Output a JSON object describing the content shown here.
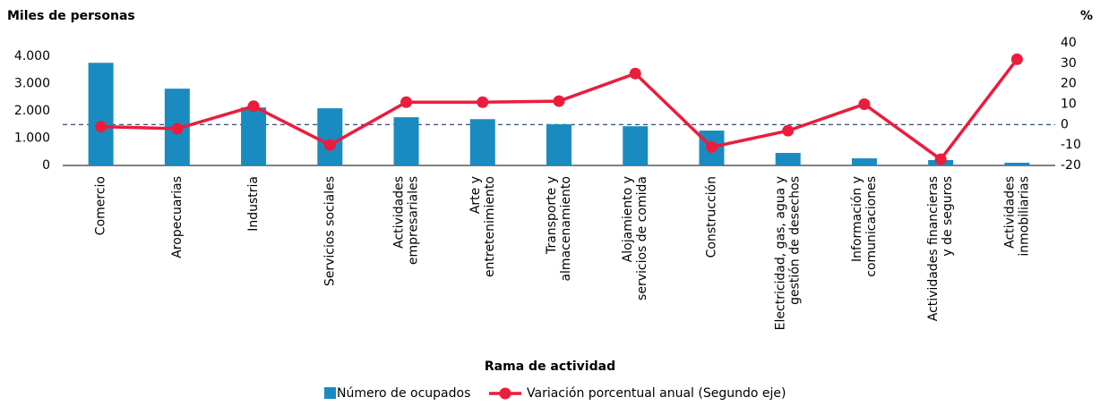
{
  "chart_data": {
    "type": "bar_line",
    "y_axis_title": "Miles de personas",
    "y2_axis_title": "%",
    "x_axis_title": "Rama de actividad",
    "categories": [
      "Comercio",
      "Aropecuarias",
      "Industria",
      "Servicios sociales",
      "Actividades\nempresariales",
      "Arte y\nentretenimiento",
      "Transporte y\nalmacenamiento",
      "Alojamiento y\nservicios de comida",
      "Construcción",
      "Electricidad, gas, agua y\ngestión de desechos",
      "Información y\ncomunicaciones",
      "Actividades financieras\ny de seguros",
      "Actividades\ninmobiliarias"
    ],
    "series": [
      {
        "name": "Número de ocupados",
        "color": "#1a8bc1",
        "kind": "bar",
        "axis": "y",
        "values": [
          3770,
          2820,
          2130,
          2100,
          1770,
          1700,
          1510,
          1440,
          1280,
          460,
          260,
          200,
          100
        ]
      },
      {
        "name": "Variación porcentual anual (Segundo eje)",
        "color": "#ec1c3c",
        "kind": "line",
        "axis": "y2",
        "values": [
          -1,
          -2,
          9,
          -10,
          11,
          11,
          11.5,
          25,
          -11,
          -3,
          10,
          -17,
          32
        ]
      }
    ],
    "ylim": [
      0,
      4500
    ],
    "yticks": [
      0,
      {
        "value": 1000,
        "label": "1.000"
      },
      {
        "value": 2000,
        "label": "2.000"
      },
      {
        "value": 3000,
        "label": "3.000"
      },
      {
        "value": 4000,
        "label": "4.000"
      }
    ],
    "y2lim": [
      -20,
      40
    ],
    "y2ticks": [
      -20,
      -10,
      0,
      10,
      20,
      30,
      40
    ],
    "reference_line": {
      "axis": "y2",
      "value": 0,
      "color": "#1f3864"
    }
  }
}
